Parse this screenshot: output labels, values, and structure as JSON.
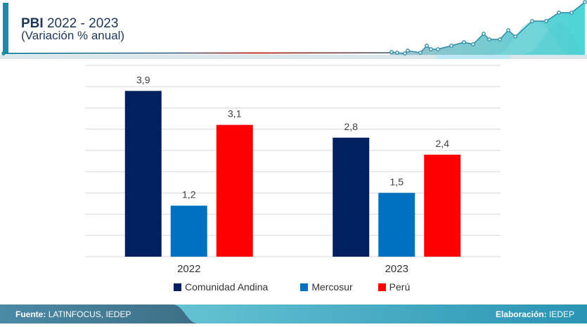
{
  "header": {
    "title_bold": "PBI",
    "title_rest": "2022 - 2023",
    "subtitle": "(Variación % anual)"
  },
  "colors": {
    "accent": "#1f8aa6",
    "title_text": "#1d3557",
    "comunidad_andina": "#002060",
    "mercosur": "#0070c0",
    "peru": "#ff0000",
    "gridline": "#d9d9d9"
  },
  "chart_data": {
    "type": "bar",
    "title": "PBI 2022 - 2023 (Variación % anual)",
    "categories": [
      "2022",
      "2023"
    ],
    "series": [
      {
        "name": "Comunidad Andina",
        "values": [
          3.9,
          2.8
        ],
        "labels": [
          "3,9",
          "2,8"
        ]
      },
      {
        "name": "Mercosur",
        "values": [
          1.2,
          1.5
        ],
        "labels": [
          "1,2",
          "1,5"
        ]
      },
      {
        "name": "Perú",
        "values": [
          3.1,
          2.4
        ],
        "labels": [
          "3,1",
          "2,4"
        ]
      }
    ],
    "xlabel": "",
    "ylabel": "",
    "ylim": [
      0,
      4.5
    ],
    "grid_step": 0.5,
    "grid": true,
    "legend_position": "bottom"
  },
  "legend": {
    "items": [
      {
        "label": "Comunidad Andina"
      },
      {
        "label": "Mercosur"
      },
      {
        "label": "Perú"
      }
    ]
  },
  "footer": {
    "source_label": "Fuente:",
    "source_value": "LATINFOCUS, IEDEP",
    "credit_label": "Elaboración:",
    "credit_value": "IEDEP"
  }
}
